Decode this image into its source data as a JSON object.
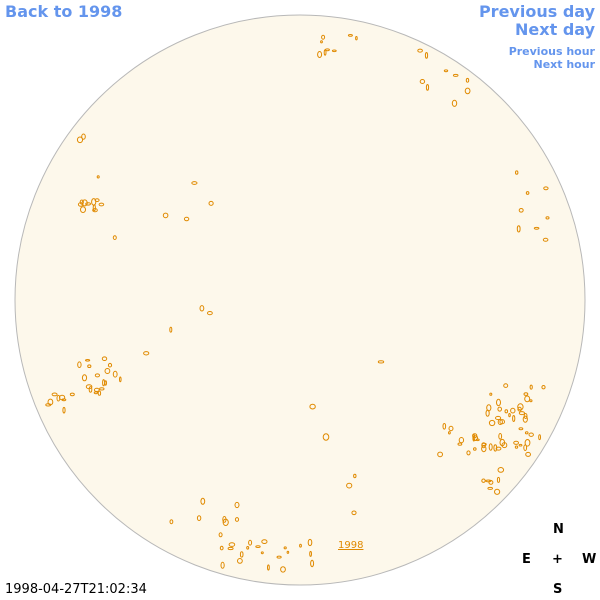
{
  "nav": {
    "back": "Back to 1998",
    "previous_day": "Previous day",
    "next_day": "Next day",
    "previous_hour": "Previous hour",
    "next_hour": "Next hour"
  },
  "disk_link": "1998",
  "timestamp": "1998-04-27T21:02:34",
  "compass": {
    "north": "N",
    "east": "E",
    "center": "+",
    "west": "W",
    "south": "S"
  }
}
